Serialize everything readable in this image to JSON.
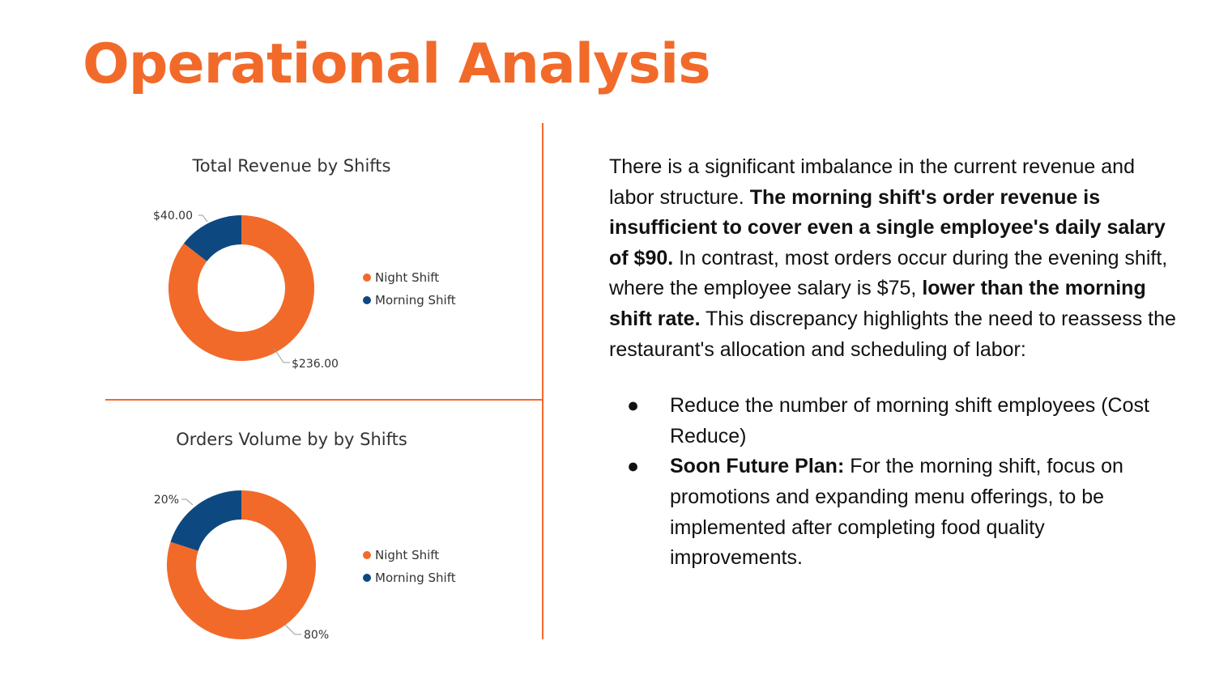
{
  "slide": {
    "title": "Operational Analysis"
  },
  "chart_data": [
    {
      "type": "pie",
      "title": "Total Revenue by Shifts",
      "categories": [
        "Night Shift",
        "Morning Shift"
      ],
      "values": [
        236,
        40
      ],
      "labels": [
        "$236.00",
        "$40.00"
      ],
      "colors": [
        "#f26a2a",
        "#0e4880"
      ],
      "legend": "right"
    },
    {
      "type": "pie",
      "title": "Orders Volume by by Shifts",
      "categories": [
        "Night Shift",
        "Morning Shift"
      ],
      "values": [
        80,
        20
      ],
      "labels": [
        "80%",
        "20%"
      ],
      "colors": [
        "#f26a2a",
        "#0e4880"
      ],
      "legend": "right"
    }
  ],
  "text": {
    "p1": "There is a significant imbalance in the current revenue and labor structure.",
    "p2_bold": "The morning shift's order revenue is insufficient to cover even a single employee's daily salary of $90.",
    "p3": "In contrast, most orders occur during the evening shift, where the employee salary is $75,",
    "p4_bold": "lower than the morning shift rate.",
    "p5": "This discrepancy highlights the need to reassess the restaurant's allocation and scheduling of labor:",
    "bullet_char": "●",
    "bullet1": "Reduce the number of morning shift employees (Cost Reduce)",
    "bullet2_bold": "Soon Future Plan:",
    "bullet2": "For the morning shift, focus on promotions and expanding menu offerings, to be implemented after completing food quality improvements."
  }
}
